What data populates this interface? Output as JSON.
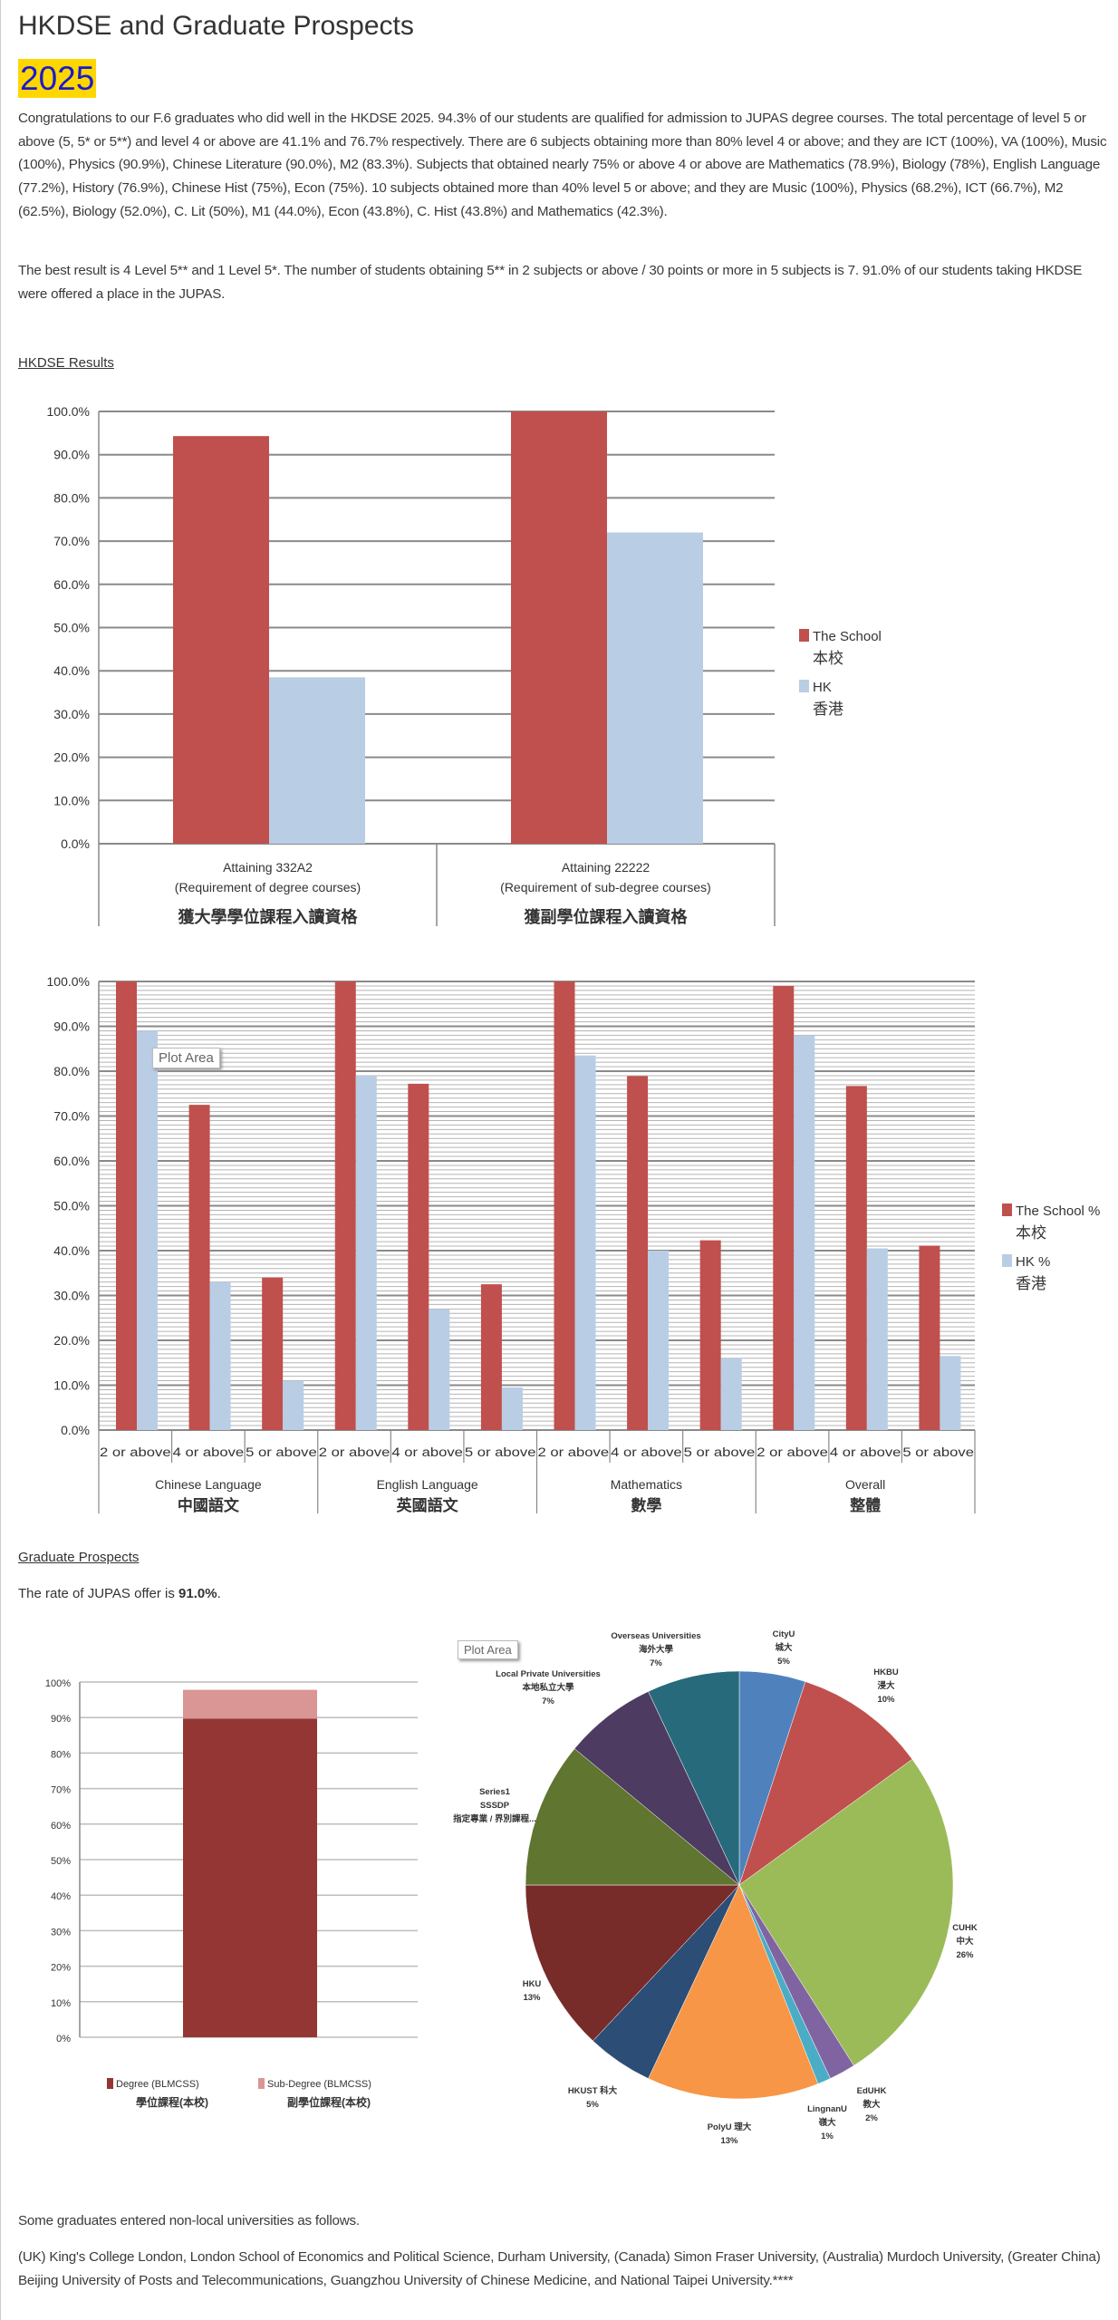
{
  "page": {
    "title": "HKDSE and Graduate Prospects",
    "year": "2025",
    "paragraphs": [
      "Congratulations to our F.6 graduates who did well in the HKDSE 2025.  94.3% of our students are qualified for admission to JUPAS degree courses.  The total percentage of level 5 or above (5, 5* or 5**) and level 4 or above are 41.1% and 76.7% respectively.   There are 6 subjects obtaining more than 80% level 4 or above; and they are ICT (100%), VA (100%), Music (100%), Physics (90.9%), Chinese Literature (90.0%), M2 (83.3%).  Subjects that obtained nearly 75% or above 4 or above are Mathematics (78.9%), Biology (78%), English Language (77.2%), History (76.9%), Chinese Hist (75%), Econ (75%).  10 subjects obtained more than 40% level 5 or above; and they are Music (100%), Physics (68.2%), ICT (66.7%), M2 (62.5%), Biology (52.0%), C. Lit (50%), M1 (44.0%), Econ (43.8%), C. Hist (43.8%) and Mathematics (42.3%).",
      "The best result is 4 Level 5** and 1 Level 5*.  The number of students obtaining 5** in 2 subjects or above / 30 points or more in 5 subjects is 7.  91.0% of our students taking HKDSE were offered a place in the JUPAS."
    ],
    "results_link": "HKDSE Results",
    "prospects_link": "Graduate Prospects",
    "jupas_rate_prefix": "The rate of JUPAS offer is ",
    "jupas_rate": "91.0%",
    "jupas_rate_suffix": ".",
    "plot_area_label": "Plot Area",
    "nonlocal_intro": "Some graduates entered non-local universities as follows.",
    "nonlocal_list": "(UK) King's College London, London School of Economics and Political Science, Durham University, (Canada) Simon Fraser University, (Australia) Murdoch University, (Greater China) Beijing University of Posts and Telecommunications, Guangzhou University of Chinese Medicine, and National Taipei University.****"
  },
  "chart_data": [
    {
      "type": "bar",
      "title": "",
      "ylim": [
        0,
        100
      ],
      "ytick_step": 10,
      "ytick_format": "0.0%",
      "categories": [
        {
          "lines": [
            "Attaining 332A2",
            "(Requirement of degree courses)"
          ],
          "zh": "獲大學學位課程入讀資格"
        },
        {
          "lines": [
            "Attaining 22222",
            "(Requirement of sub-degree courses)"
          ],
          "zh": "獲副學位課程入讀資格"
        }
      ],
      "series": [
        {
          "name": "The School",
          "name_zh": "本校",
          "color": "#c0504d",
          "values": [
            94.3,
            100
          ]
        },
        {
          "name": "HK",
          "name_zh": "香港",
          "color": "#b9cde5",
          "values": [
            38.5,
            72.0
          ]
        }
      ],
      "legend": "right"
    },
    {
      "type": "bar",
      "ylim": [
        0,
        100
      ],
      "ytick_step": 10,
      "ytick_format": "0.0%",
      "groups": [
        {
          "name": "Chinese Language",
          "zh": "中國語文"
        },
        {
          "name": "English Language",
          "zh": "英國語文"
        },
        {
          "name": "Mathematics",
          "zh": "數學"
        },
        {
          "name": "Overall",
          "zh": "整體"
        }
      ],
      "subcategories": [
        "2 or above",
        "4 or above",
        "5 or above"
      ],
      "series": [
        {
          "name": "The School %",
          "name_zh": "本校",
          "color": "#c0504d",
          "values": [
            100,
            72.5,
            34.0,
            100,
            77.2,
            32.5,
            100,
            78.9,
            42.3,
            99.0,
            76.7,
            41.1
          ]
        },
        {
          "name": "HK %",
          "name_zh": "香港",
          "color": "#b9cde5",
          "values": [
            89.0,
            33.0,
            11.0,
            79.0,
            27.0,
            9.5,
            83.5,
            40.0,
            16.0,
            88.0,
            40.5,
            16.5
          ]
        }
      ],
      "legend": "right"
    },
    {
      "type": "bar",
      "stacked": true,
      "ylim": [
        0,
        100
      ],
      "ytick_step": 10,
      "ytick_format": "0%",
      "series": [
        {
          "name": "Degree (BLMCSS)",
          "name_zh": "學位課程(本校)",
          "color": "#943634",
          "values": [
            89.7
          ]
        },
        {
          "name": "Sub-Degree (BLMCSS)",
          "name_zh": "副學位課程(本校)",
          "color": "#d99694",
          "values": [
            8.1
          ]
        }
      ],
      "legend": "bottom"
    },
    {
      "type": "pie",
      "slices": [
        {
          "label": "CityU",
          "zh": "城大",
          "pct_label": "5%",
          "value": 5,
          "color": "#4f81bd"
        },
        {
          "label": "HKBU",
          "zh": "浸大",
          "pct_label": "10%",
          "value": 10,
          "color": "#c0504d"
        },
        {
          "label": "CUHK",
          "zh": "中大",
          "pct_label": "26%",
          "value": 26,
          "color": "#9bbb59"
        },
        {
          "label": "EdUHK",
          "zh": "教大",
          "pct_label": "2%",
          "value": 2,
          "color": "#8064a2"
        },
        {
          "label": "LingnanU",
          "zh": "嶺大",
          "pct_label": "1%",
          "value": 1,
          "color": "#4bacc6"
        },
        {
          "label": "PolyU",
          "zh": "理大",
          "pct_label": "13%",
          "value": 13,
          "color": "#f79646"
        },
        {
          "label": "HKUST",
          "zh": "科大",
          "pct_label": "5%",
          "value": 5,
          "color": "#2c4d75"
        },
        {
          "label": "HKU",
          "zh": "",
          "pct_label": "13%",
          "value": 13,
          "color": "#772c2a"
        },
        {
          "label": "Series1",
          "label2": "SSSDP",
          "zh": "指定專業 / 界別課程...",
          "pct_label": "",
          "value": 11,
          "color": "#5f7530"
        },
        {
          "label": "Local Private Universities",
          "zh": "本地私立大學",
          "pct_label": "7%",
          "value": 7,
          "color": "#4d3b62"
        },
        {
          "label": "Overseas Universities",
          "zh": "海外大學",
          "pct_label": "7%",
          "value": 7,
          "color": "#276a7c"
        }
      ]
    }
  ]
}
